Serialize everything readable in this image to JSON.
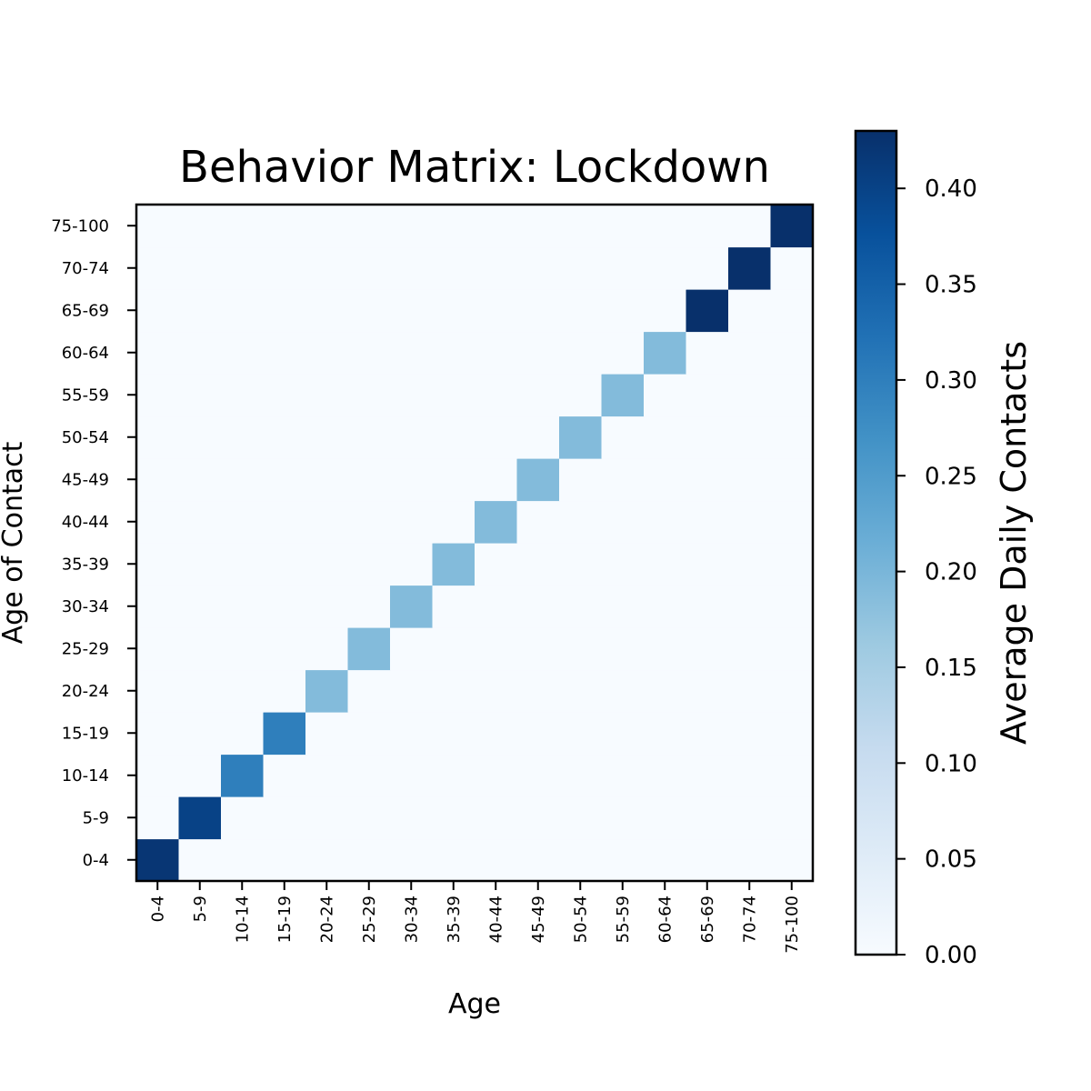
{
  "chart_data": {
    "type": "heatmap",
    "title": "Behavior Matrix: Lockdown",
    "xlabel": "Age",
    "ylabel": "Age of Contact",
    "categories": [
      "0-4",
      "5-9",
      "10-14",
      "15-19",
      "20-24",
      "25-29",
      "30-34",
      "35-39",
      "40-44",
      "45-49",
      "50-54",
      "55-59",
      "60-64",
      "65-69",
      "70-74",
      "75-100"
    ],
    "cells": [
      {
        "x": "0-4",
        "y": "0-4",
        "value": 0.42
      },
      {
        "x": "5-9",
        "y": "5-9",
        "value": 0.4
      },
      {
        "x": "10-14",
        "y": "10-14",
        "value": 0.3
      },
      {
        "x": "15-19",
        "y": "15-19",
        "value": 0.3
      },
      {
        "x": "20-24",
        "y": "20-24",
        "value": 0.19
      },
      {
        "x": "25-29",
        "y": "25-29",
        "value": 0.19
      },
      {
        "x": "30-34",
        "y": "30-34",
        "value": 0.19
      },
      {
        "x": "35-39",
        "y": "35-39",
        "value": 0.19
      },
      {
        "x": "40-44",
        "y": "40-44",
        "value": 0.19
      },
      {
        "x": "45-49",
        "y": "45-49",
        "value": 0.19
      },
      {
        "x": "50-54",
        "y": "50-54",
        "value": 0.19
      },
      {
        "x": "55-59",
        "y": "55-59",
        "value": 0.19
      },
      {
        "x": "60-64",
        "y": "60-64",
        "value": 0.19
      },
      {
        "x": "65-69",
        "y": "65-69",
        "value": 0.43
      },
      {
        "x": "70-74",
        "y": "70-74",
        "value": 0.43
      },
      {
        "x": "75-100",
        "y": "75-100",
        "value": 0.43
      }
    ],
    "off_diagonal_value": 0.0,
    "colorbar": {
      "label": "Average Daily Contacts",
      "range": [
        0.0,
        0.43
      ],
      "ticks": [
        "0.00",
        "0.05",
        "0.10",
        "0.15",
        "0.20",
        "0.25",
        "0.30",
        "0.35",
        "0.40"
      ],
      "colormap": "Blues",
      "stops": [
        "#f7fbff",
        "#deebf7",
        "#c6dbef",
        "#9ecae1",
        "#6baed6",
        "#4292c6",
        "#2171b5",
        "#08519c",
        "#08306b"
      ]
    },
    "grid": false
  }
}
